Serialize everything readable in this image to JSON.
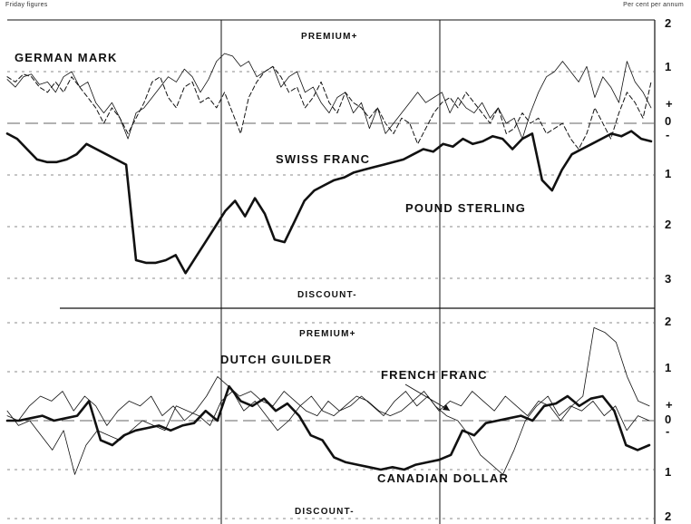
{
  "header": {
    "left": "Friday figures",
    "right": "Per cent per annum"
  },
  "chart_data": [
    {
      "type": "line",
      "panel": "upper",
      "y_axis_ticks": [
        "2",
        "1",
        "+",
        "0",
        "-",
        "1",
        "2",
        "3"
      ],
      "ylim": [
        -3,
        2
      ],
      "annotations": {
        "top": "PREMIUM+",
        "bottom": "DISCOUNT-"
      },
      "grid": true,
      "series": [
        {
          "name": "GERMAN MARK",
          "style": "dashed",
          "values": [
            0.9,
            0.8,
            0.95,
            0.9,
            0.7,
            0.6,
            0.8,
            0.6,
            0.9,
            0.7,
            0.5,
            0.3,
            0.0,
            0.3,
            0.1,
            -0.2,
            0.1,
            0.4,
            0.8,
            0.9,
            0.5,
            0.3,
            0.7,
            0.8,
            0.4,
            0.5,
            0.3,
            0.6,
            0.2,
            -0.2,
            0.5,
            0.8,
            1.0,
            1.1,
            0.9,
            0.6,
            0.7,
            0.3,
            0.5,
            0.8,
            0.4,
            0.2,
            0.6,
            0.4,
            0.3,
            0.1,
            0.3,
            0.0,
            -0.2,
            0.1,
            0.0,
            -0.4,
            -0.1,
            0.2,
            0.4,
            0.5,
            0.3,
            0.6,
            0.4,
            0.2,
            0.0,
            0.3,
            -0.2,
            -0.1,
            0.2,
            0.0,
            0.1,
            -0.2,
            -0.1,
            0.0,
            -0.3,
            -0.5,
            -0.2,
            0.3,
            0.0,
            -0.3,
            0.2,
            0.6,
            0.4,
            0.1,
            0.8
          ]
        },
        {
          "name": "SWISS FRANC",
          "style": "thin",
          "values": [
            0.85,
            0.7,
            0.9,
            0.95,
            0.75,
            0.8,
            0.6,
            0.9,
            1.0,
            0.7,
            0.8,
            0.4,
            0.2,
            0.4,
            0.1,
            -0.3,
            0.2,
            0.3,
            0.5,
            0.7,
            0.9,
            0.8,
            1.05,
            0.9,
            0.6,
            0.85,
            1.2,
            1.35,
            1.3,
            1.1,
            1.2,
            0.9,
            1.0,
            1.1,
            0.7,
            0.9,
            1.0,
            0.6,
            0.7,
            0.4,
            0.2,
            0.5,
            0.6,
            0.2,
            0.4,
            -0.1,
            0.3,
            -0.2,
            0.0,
            0.2,
            0.4,
            0.6,
            0.4,
            0.5,
            0.6,
            0.2,
            0.5,
            0.3,
            0.2,
            0.4,
            0.1,
            0.3,
            0.0,
            0.1,
            -0.3,
            0.2,
            0.6,
            0.9,
            1.0,
            1.2,
            1.0,
            0.8,
            1.1,
            0.5,
            0.9,
            0.7,
            0.4,
            1.2,
            0.8,
            0.6,
            0.3
          ]
        },
        {
          "name": "POUND STERLING",
          "style": "thick",
          "values": [
            -0.2,
            -0.3,
            -0.5,
            -0.7,
            -0.75,
            -0.75,
            -0.7,
            -0.6,
            -0.4,
            -0.5,
            -0.6,
            -0.7,
            -0.8,
            -2.65,
            -2.7,
            -2.7,
            -2.65,
            -2.55,
            -2.9,
            -2.6,
            -2.3,
            -2.0,
            -1.7,
            -1.5,
            -1.8,
            -1.45,
            -1.75,
            -2.25,
            -2.3,
            -1.9,
            -1.5,
            -1.3,
            -1.2,
            -1.1,
            -1.05,
            -0.95,
            -0.9,
            -0.85,
            -0.8,
            -0.75,
            -0.7,
            -0.6,
            -0.5,
            -0.55,
            -0.4,
            -0.45,
            -0.3,
            -0.4,
            -0.35,
            -0.25,
            -0.3,
            -0.5,
            -0.3,
            -0.2,
            -1.1,
            -1.3,
            -0.9,
            -0.6,
            -0.5,
            -0.4,
            -0.3,
            -0.2,
            -0.25,
            -0.15,
            -0.3,
            -0.35
          ]
        }
      ]
    },
    {
      "type": "line",
      "panel": "lower",
      "y_axis_ticks": [
        "2",
        "1",
        "+",
        "0",
        "-",
        "1",
        "2"
      ],
      "ylim": [
        -2,
        2
      ],
      "annotations": {
        "top": "PREMIUM+",
        "bottom": "DISCOUNT-"
      },
      "grid": true,
      "series": [
        {
          "name": "DUTCH GUILDER",
          "style": "thin",
          "values": [
            0.1,
            0.0,
            0.3,
            0.5,
            0.4,
            0.6,
            0.2,
            0.5,
            0.3,
            -0.1,
            0.2,
            0.4,
            0.3,
            0.5,
            0.1,
            0.3,
            0.0,
            0.2,
            0.5,
            0.9,
            0.7,
            0.5,
            0.6,
            0.4,
            0.3,
            0.6,
            0.4,
            0.2,
            0.1,
            0.4,
            0.2,
            0.3,
            0.5,
            0.3,
            0.1,
            0.4,
            0.6,
            0.3,
            0.5,
            0.2,
            0.4,
            0.3,
            0.6,
            0.4,
            0.2,
            0.5,
            0.3,
            0.1,
            0.4,
            0.3,
            0.0,
            0.3,
            0.5,
            1.9,
            1.8,
            1.6,
            0.9,
            0.4,
            0.3
          ]
        },
        {
          "name": "FRENCH FRANC",
          "style": "thin",
          "values": [
            0.2,
            -0.1,
            0.0,
            -0.3,
            -0.6,
            -0.2,
            -1.1,
            -0.5,
            -0.2,
            -0.3,
            -0.4,
            -0.2,
            0.0,
            -0.1,
            -0.2,
            0.3,
            0.2,
            0.1,
            -0.1,
            0.4,
            0.6,
            0.2,
            0.4,
            0.1,
            -0.2,
            0.0,
            0.3,
            0.5,
            0.2,
            0.1,
            0.3,
            0.5,
            0.4,
            0.2,
            0.1,
            0.2,
            0.4,
            0.6,
            0.3,
            0.1,
            0.0,
            -0.3,
            -0.7,
            -0.9,
            -1.1,
            -0.6,
            0.0,
            0.3,
            0.5,
            0.1,
            0.3,
            0.2,
            0.4,
            0.1,
            0.3,
            -0.2,
            0.1,
            0.0
          ]
        },
        {
          "name": "CANADIAN DOLLAR",
          "style": "thick",
          "values": [
            0.0,
            0.0,
            0.05,
            0.1,
            0.0,
            0.05,
            0.1,
            0.4,
            -0.4,
            -0.5,
            -0.3,
            -0.2,
            -0.15,
            -0.1,
            -0.2,
            -0.1,
            -0.05,
            0.2,
            0.0,
            0.7,
            0.4,
            0.3,
            0.45,
            0.2,
            0.35,
            0.1,
            -0.3,
            -0.4,
            -0.75,
            -0.85,
            -0.9,
            -0.95,
            -1.0,
            -0.95,
            -1.0,
            -0.9,
            -0.85,
            -0.8,
            -0.7,
            -0.2,
            -0.3,
            -0.05,
            0.0,
            0.05,
            0.1,
            0.0,
            0.3,
            0.35,
            0.5,
            0.3,
            0.45,
            0.5,
            0.2,
            -0.5,
            -0.6,
            -0.5
          ]
        }
      ]
    }
  ]
}
